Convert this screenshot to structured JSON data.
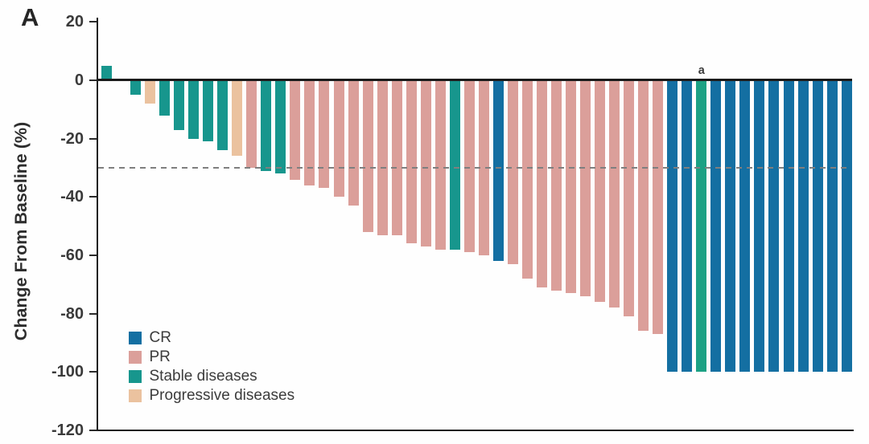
{
  "panel_label": "A",
  "y_axis": {
    "label": "Change From Baseline (%)",
    "ticks": [
      20,
      0,
      -20,
      -40,
      -60,
      -80,
      -100,
      -120
    ],
    "range": [
      -120,
      20
    ]
  },
  "reference_line": {
    "value": -30,
    "style": "dashed",
    "color": "#7f7f7f"
  },
  "footnote_marker": {
    "text": "a",
    "bar_index": 41
  },
  "legend": [
    {
      "key": "cr",
      "label": "CR",
      "color": "#146fa2"
    },
    {
      "key": "pr",
      "label": "PR",
      "color": "#db9f9a"
    },
    {
      "key": "stable",
      "label": "Stable diseases",
      "color": "#17968d"
    },
    {
      "key": "progressive",
      "label": "Progressive diseases",
      "color": "#ebc29f"
    }
  ],
  "colors": {
    "axis": "#1f1f1f",
    "tick_text": "#3a3a3a",
    "footnote_bar": "#1ca184"
  },
  "chart_data": {
    "type": "bar",
    "ylabel": "Change From Baseline (%)",
    "ylim": [
      -120,
      20
    ],
    "grid": false,
    "legend_position": "lower-left",
    "reference_line_y": -30,
    "bars": [
      {
        "value": 5,
        "category": "stable"
      },
      {
        "value": 0,
        "category": "stable"
      },
      {
        "value": -5,
        "category": "stable"
      },
      {
        "value": -8,
        "category": "progressive"
      },
      {
        "value": -12,
        "category": "stable"
      },
      {
        "value": -17,
        "category": "stable"
      },
      {
        "value": -20,
        "category": "stable"
      },
      {
        "value": -21,
        "category": "stable"
      },
      {
        "value": -24,
        "category": "stable"
      },
      {
        "value": -26,
        "category": "progressive"
      },
      {
        "value": -30,
        "category": "pr"
      },
      {
        "value": -31,
        "category": "stable"
      },
      {
        "value": -32,
        "category": "stable"
      },
      {
        "value": -34,
        "category": "pr"
      },
      {
        "value": -36,
        "category": "pr"
      },
      {
        "value": -37,
        "category": "pr"
      },
      {
        "value": -40,
        "category": "pr"
      },
      {
        "value": -43,
        "category": "pr"
      },
      {
        "value": -52,
        "category": "pr"
      },
      {
        "value": -53,
        "category": "pr"
      },
      {
        "value": -53,
        "category": "pr"
      },
      {
        "value": -56,
        "category": "pr"
      },
      {
        "value": -57,
        "category": "pr"
      },
      {
        "value": -58,
        "category": "pr"
      },
      {
        "value": -58,
        "category": "stable"
      },
      {
        "value": -59,
        "category": "pr"
      },
      {
        "value": -60,
        "category": "pr"
      },
      {
        "value": -62,
        "category": "cr"
      },
      {
        "value": -63,
        "category": "pr"
      },
      {
        "value": -68,
        "category": "pr"
      },
      {
        "value": -71,
        "category": "pr"
      },
      {
        "value": -72,
        "category": "pr"
      },
      {
        "value": -73,
        "category": "pr"
      },
      {
        "value": -74,
        "category": "pr"
      },
      {
        "value": -76,
        "category": "pr"
      },
      {
        "value": -78,
        "category": "pr"
      },
      {
        "value": -81,
        "category": "pr"
      },
      {
        "value": -86,
        "category": "pr"
      },
      {
        "value": -87,
        "category": "pr"
      },
      {
        "value": -100,
        "category": "cr"
      },
      {
        "value": -100,
        "category": "cr"
      },
      {
        "value": -100,
        "category": "stable",
        "color": "#1ca184",
        "footnote": "a"
      },
      {
        "value": -100,
        "category": "cr"
      },
      {
        "value": -100,
        "category": "cr"
      },
      {
        "value": -100,
        "category": "cr"
      },
      {
        "value": -100,
        "category": "cr"
      },
      {
        "value": -100,
        "category": "cr"
      },
      {
        "value": -100,
        "category": "cr"
      },
      {
        "value": -100,
        "category": "cr"
      },
      {
        "value": -100,
        "category": "cr"
      },
      {
        "value": -100,
        "category": "cr"
      },
      {
        "value": -100,
        "category": "cr"
      }
    ]
  }
}
